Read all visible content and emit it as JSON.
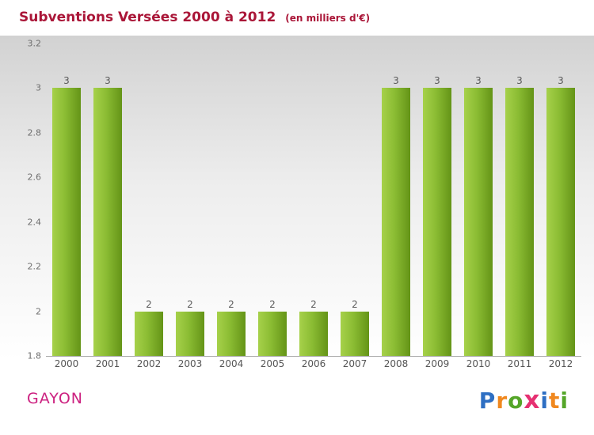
{
  "header": {
    "title": "Subventions Versées 2000 à 2012",
    "subtitle": "(en milliers d'€)",
    "title_color": "#aa1638"
  },
  "footer": {
    "org": "GAYON",
    "org_color": "#cc2180",
    "brand": {
      "name": "Proxiti",
      "letters": [
        {
          "ch": "P",
          "color": "#2e6fc3"
        },
        {
          "ch": "r",
          "color": "#f0881f"
        },
        {
          "ch": "o",
          "color": "#55a629"
        },
        {
          "ch": "x",
          "color": "#e63172"
        },
        {
          "ch": "i",
          "color": "#2e6fc3"
        },
        {
          "ch": "t",
          "color": "#f0881f"
        },
        {
          "ch": "i",
          "color": "#55a629"
        }
      ]
    }
  },
  "chart_data": {
    "type": "bar",
    "title": "Subventions Versées 2000 à 2012",
    "subtitle": "(en milliers d'€)",
    "categories": [
      "2000",
      "2001",
      "2002",
      "2003",
      "2004",
      "2005",
      "2006",
      "2007",
      "2008",
      "2009",
      "2010",
      "2011",
      "2012"
    ],
    "values": [
      3,
      3,
      2,
      2,
      2,
      2,
      2,
      2,
      3,
      3,
      3,
      3,
      3
    ],
    "ylim": [
      1.8,
      3.2
    ],
    "yticks": [
      1.8,
      2,
      2.2,
      2.4,
      2.6,
      2.8,
      3,
      3.2
    ],
    "xlabel": "",
    "ylabel": "",
    "grid": false,
    "legend": null,
    "bar_color_start": "#a6d14a",
    "bar_color_end": "#649417",
    "value_labels": true
  }
}
